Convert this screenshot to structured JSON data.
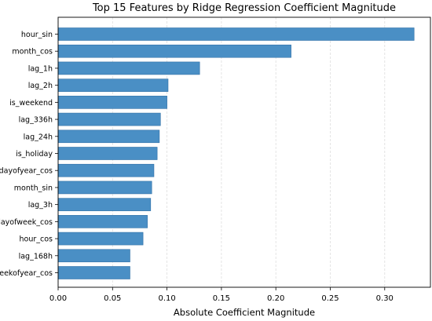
{
  "chart_data": {
    "type": "bar",
    "orientation": "horizontal",
    "title": "Top 15 Features by Ridge Regression Coefficient Magnitude",
    "xlabel": "Absolute Coefficient Magnitude",
    "ylabel": "",
    "categories": [
      "hour_sin",
      "month_cos",
      "lag_1h",
      "lag_2h",
      "is_weekend",
      "lag_336h",
      "lag_24h",
      "is_holiday",
      "dayofyear_cos",
      "month_sin",
      "lag_3h",
      "dayofweek_cos",
      "hour_cos",
      "lag_168h",
      "weekofyear_cos"
    ],
    "values": [
      0.327,
      0.214,
      0.13,
      0.101,
      0.1,
      0.094,
      0.093,
      0.091,
      0.088,
      0.086,
      0.085,
      0.082,
      0.078,
      0.066,
      0.066
    ],
    "xlim": [
      0,
      0.342
    ],
    "xticks": [
      0.0,
      0.05,
      0.1,
      0.15,
      0.2,
      0.25,
      0.3
    ],
    "xtick_labels": [
      "0.00",
      "0.05",
      "0.10",
      "0.15",
      "0.20",
      "0.25",
      "0.30"
    ],
    "grid": "x-axis, light dashed",
    "bar_color": "#4a8fc5",
    "bar_edge_color": "#2f6fa6",
    "grid_color": "#dddddd"
  }
}
